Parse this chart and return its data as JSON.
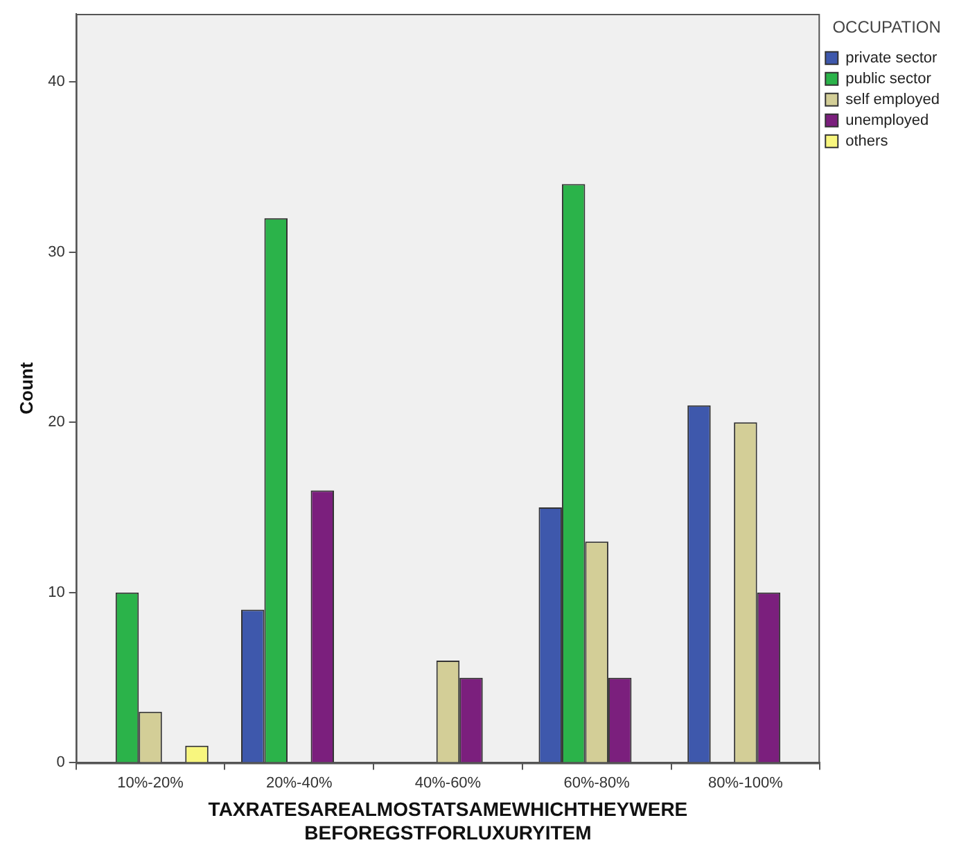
{
  "chart_data": {
    "type": "bar",
    "xlabel": "TAXRATESAREALMOSTATSAMEWHICHTHEYWERE\nBEFOREGSTFORLUXURYITEM",
    "ylabel": "Count",
    "legend_title": "OCCUPATION",
    "legend": "top right",
    "categories": [
      "10%-20%",
      "20%-40%",
      "40%-60%",
      "60%-80%",
      "80%-100%"
    ],
    "series": [
      {
        "name": "private sector",
        "color": "#3e58ac",
        "values": [
          null,
          9,
          null,
          15,
          21
        ]
      },
      {
        "name": "public sector",
        "color": "#2bb34a",
        "values": [
          10,
          32,
          null,
          34,
          null
        ]
      },
      {
        "name": "self employed",
        "color": "#d3ce97",
        "values": [
          3,
          null,
          6,
          13,
          20
        ]
      },
      {
        "name": "unemployed",
        "color": "#7b1f7d",
        "values": [
          null,
          16,
          5,
          5,
          10
        ]
      },
      {
        "name": "others",
        "color": "#f8f67e",
        "values": [
          1,
          null,
          null,
          null,
          null
        ]
      }
    ],
    "ylim": [
      0,
      44
    ],
    "yticks": [
      0,
      10,
      20,
      30,
      40
    ]
  }
}
